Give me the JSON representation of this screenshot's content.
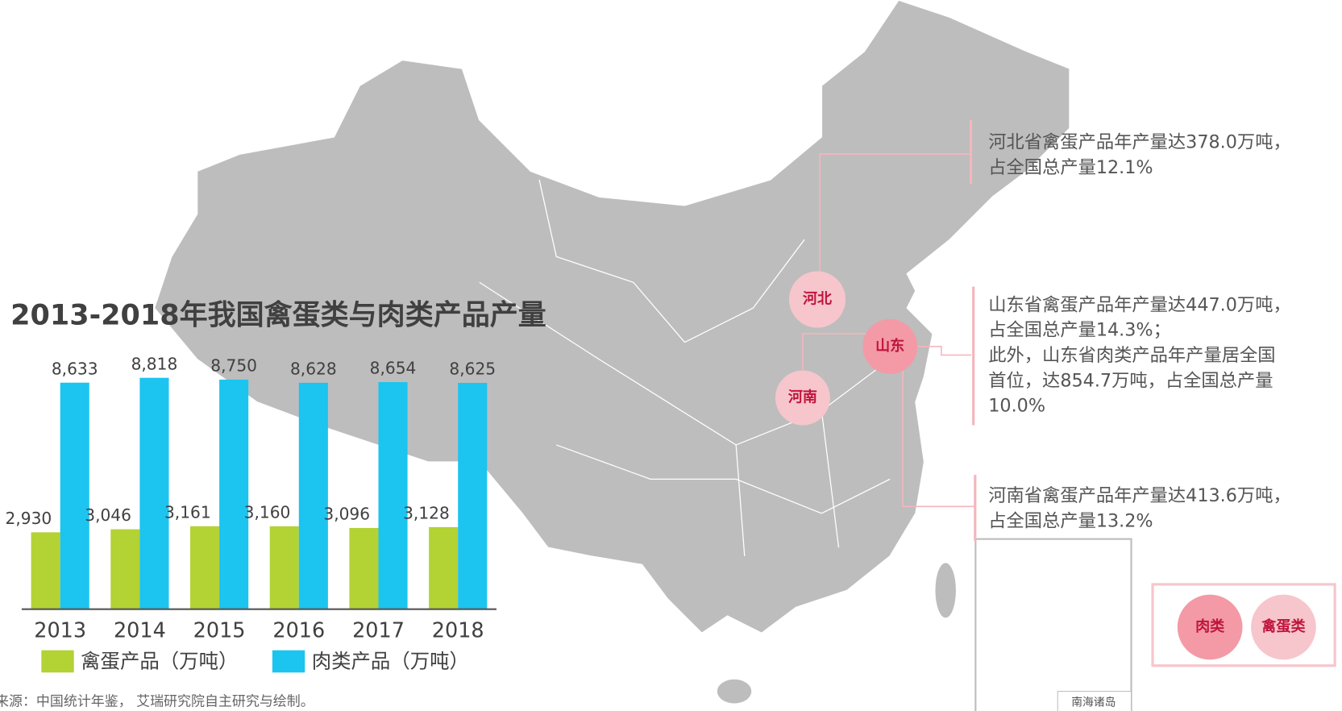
{
  "chart_data": {
    "type": "bar",
    "title": "2013-2018年我国禽蛋类与肉类产品产量",
    "categories": [
      "2013",
      "2014",
      "2015",
      "2016",
      "2017",
      "2018"
    ],
    "series": [
      {
        "name": "禽蛋产品（万吨）",
        "color": "#b3d234",
        "values": [
          2930,
          3046,
          3161,
          3160,
          3096,
          3128
        ],
        "value_labels": [
          "2,930",
          "3,046",
          "3,161",
          "3,160",
          "3,096",
          "3,128"
        ]
      },
      {
        "name": "肉类产品（万吨）",
        "color": "#1cc4f0",
        "values": [
          8633,
          8818,
          8750,
          8628,
          8654,
          8625
        ],
        "value_labels": [
          "8,633",
          "8,818",
          "8,750",
          "8,628",
          "8,654",
          "8,625"
        ]
      }
    ],
    "ylim": [
      0,
      9000
    ]
  },
  "source": "来源：中国统计年鉴， 艾瑞研究院自主研究与绘制。",
  "map": {
    "provinces": [
      "河北",
      "山东",
      "河南"
    ],
    "annotations": [
      [
        "河北省禽蛋产品年产量达378.0万吨，",
        "占全国总产量12.1%"
      ],
      [
        "山东省禽蛋产品年产量达447.0万吨，",
        "占全国总产量14.3%；",
        "此外，山东省肉类产品年产量居全国",
        "首位，达854.7万吨，占全国总产量",
        "10.0%"
      ],
      [
        "河南省禽蛋产品年产量达413.6万吨，",
        "占全国总产量13.2%"
      ]
    ],
    "legend": [
      "肉类",
      "禽蛋类"
    ],
    "inset_label": "南海诸岛"
  }
}
